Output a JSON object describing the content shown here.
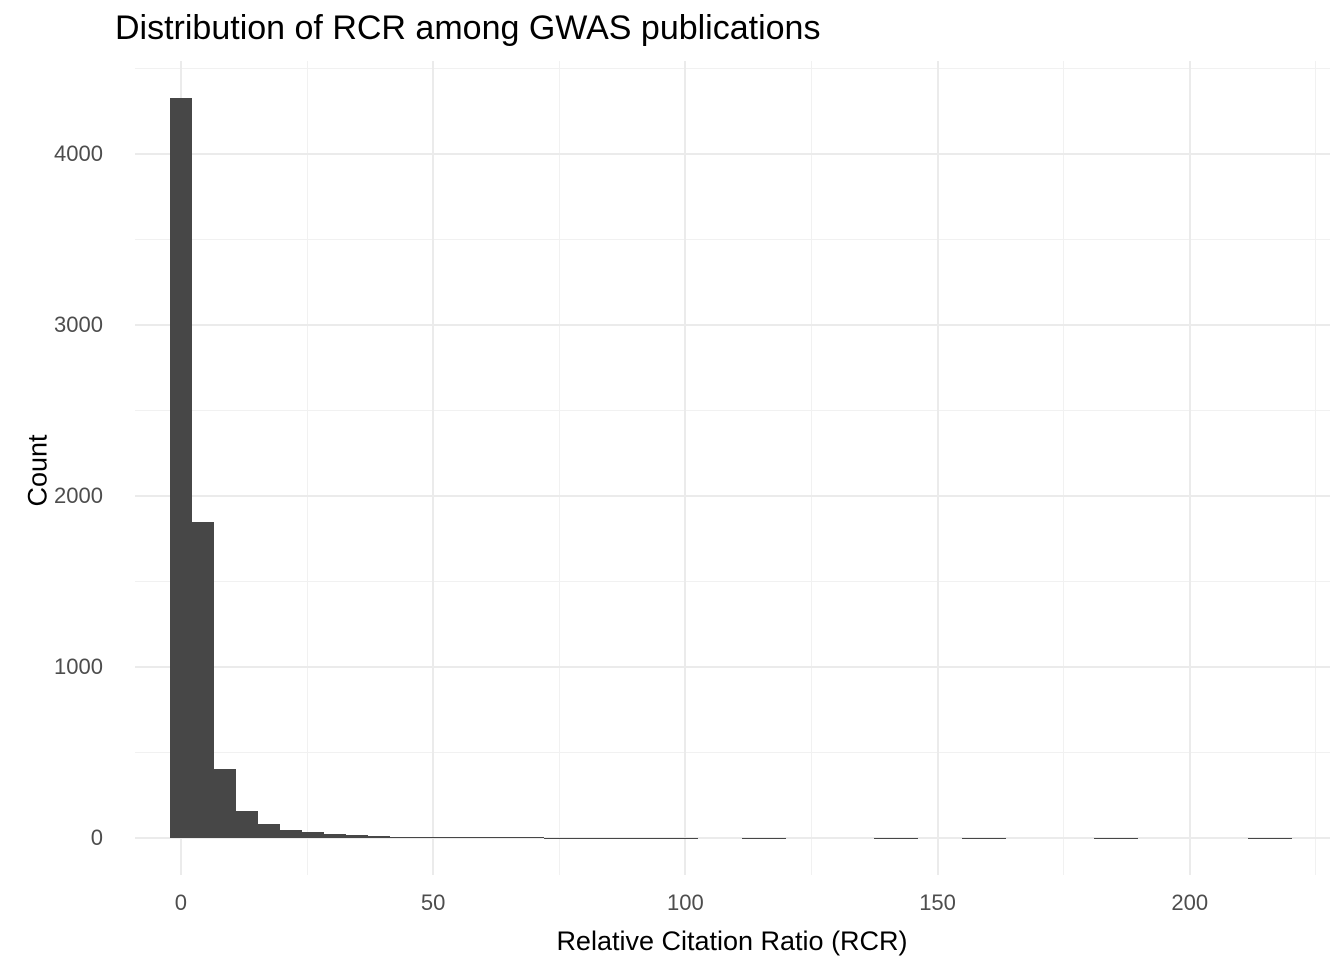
{
  "title": "Distribution of RCR among GWAS publications",
  "colors": {
    "background": "#ffffff",
    "bar_fill": "#474747",
    "grid_major": "#ebebeb",
    "grid_minor": "#f1f1f1",
    "tick_label": "#4d4d4d",
    "title_color": "#000000",
    "axis_title_color": "#000000"
  },
  "chart_data": {
    "type": "bar",
    "subtype": "histogram",
    "title": "Distribution of RCR among GWAS publications",
    "xlabel": "Relative Citation Ratio (RCR)",
    "ylabel": "Count",
    "xlim": [
      -9.1,
      227.8
    ],
    "ylim": [
      -216,
      4544
    ],
    "grid": "on",
    "legend": "none",
    "x_major_ticks": [
      0,
      50,
      100,
      150,
      200
    ],
    "x_minor_ticks": [
      25,
      75,
      125,
      175,
      225
    ],
    "y_major_ticks": [
      0,
      1000,
      2000,
      3000,
      4000
    ],
    "y_minor_ticks": [
      500,
      1500,
      2500,
      3500,
      4500
    ],
    "bin_width": 4.36,
    "bin_start": -2.18,
    "counts": [
      4330,
      1850,
      405,
      160,
      85,
      50,
      34,
      23,
      16,
      12,
      9,
      8,
      7,
      6,
      5,
      5,
      4,
      3,
      2,
      2,
      1,
      1,
      2,
      1,
      0,
      0,
      2,
      1,
      0,
      0,
      0,
      0,
      2,
      1,
      0,
      0,
      2,
      2,
      0,
      0,
      0,
      0,
      2,
      1,
      0,
      0,
      0,
      0,
      0,
      2,
      1
    ]
  }
}
